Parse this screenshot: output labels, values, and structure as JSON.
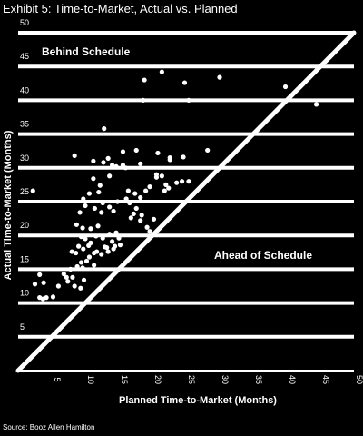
{
  "title": "Exhibit 5: Time-to-Market, Actual vs. Planned",
  "source": "Source: Booz Allen Hamilton",
  "chart_data": {
    "type": "scatter",
    "xlabel": "Planned Time-to-Market (Months)",
    "ylabel": "Actual Time-to-Market (Months)",
    "xlim": [
      0,
      50
    ],
    "ylim": [
      0,
      50
    ],
    "x_ticks": [
      "5",
      "10",
      "15",
      "20",
      "25",
      "30",
      "35",
      "40",
      "45",
      "50"
    ],
    "x_tick_values": [
      5,
      10,
      15,
      20,
      25,
      30,
      35,
      40,
      45,
      50
    ],
    "y_ticks": [
      "5",
      "10",
      "15",
      "20",
      "25",
      "30",
      "35",
      "40",
      "45",
      "50"
    ],
    "y_tick_values": [
      5,
      10,
      15,
      20,
      25,
      30,
      35,
      40,
      45,
      50
    ],
    "grid": "horizontal",
    "reference_line": "y = x",
    "annotations": [
      "Behind Schedule",
      "Ahead of Schedule"
    ],
    "colors": {
      "background": "#000000",
      "foreground": "#ffffff"
    },
    "points": [
      [
        3.2,
        10.8
      ],
      [
        3.7,
        10.6
      ],
      [
        4.2,
        10.8
      ],
      [
        5.2,
        10.9
      ],
      [
        2.5,
        12.8
      ],
      [
        3.8,
        13.0
      ],
      [
        3.2,
        14.2
      ],
      [
        6.0,
        12.5
      ],
      [
        6.8,
        14.3
      ],
      [
        7.2,
        13.8
      ],
      [
        7.4,
        13.2
      ],
      [
        8.1,
        13.8
      ],
      [
        8.4,
        12.5
      ],
      [
        9.3,
        12.2
      ],
      [
        9.8,
        13.4
      ],
      [
        7.8,
        15.0
      ],
      [
        8.8,
        15.4
      ],
      [
        9.4,
        16.0
      ],
      [
        9.6,
        15.2
      ],
      [
        10.2,
        16.2
      ],
      [
        10.6,
        16.8
      ],
      [
        11.3,
        15.6
      ],
      [
        8.0,
        17.6
      ],
      [
        8.6,
        17.4
      ],
      [
        9.0,
        18.4
      ],
      [
        9.7,
        18.0
      ],
      [
        10.5,
        18.5
      ],
      [
        11.3,
        17.4
      ],
      [
        11.7,
        17.6
      ],
      [
        12.4,
        17.2
      ],
      [
        9.4,
        19.8
      ],
      [
        10.0,
        19.5
      ],
      [
        10.8,
        18.9
      ],
      [
        11.6,
        19.9
      ],
      [
        12.6,
        19.6
      ],
      [
        12.9,
        18.3
      ],
      [
        13.6,
        20.2
      ],
      [
        14.0,
        19.1
      ],
      [
        14.6,
        20.4
      ],
      [
        15.0,
        19.6
      ],
      [
        13.2,
        18.2
      ],
      [
        8.7,
        21.6
      ],
      [
        9.6,
        21.1
      ],
      [
        10.8,
        21.0
      ],
      [
        11.9,
        21.4
      ],
      [
        13.4,
        17.6
      ],
      [
        14.4,
        18.4
      ],
      [
        15.2,
        18.6
      ],
      [
        14.2,
        18.0
      ],
      [
        9.2,
        23.4
      ],
      [
        10.0,
        24.4
      ],
      [
        11.4,
        24.0
      ],
      [
        12.4,
        23.4
      ],
      [
        13.6,
        24.2
      ],
      [
        14.2,
        23.6
      ],
      [
        12.6,
        24.8
      ],
      [
        14.8,
        25.0
      ],
      [
        16.6,
        24.8
      ],
      [
        17.6,
        24.0
      ],
      [
        17.2,
        23.2
      ],
      [
        16.8,
        22.6
      ],
      [
        18.2,
        22.2
      ],
      [
        18.4,
        23.0
      ],
      [
        19.2,
        21.2
      ],
      [
        19.6,
        20.6
      ],
      [
        20.2,
        22.4
      ],
      [
        9.7,
        25.4
      ],
      [
        10.6,
        26.2
      ],
      [
        12.2,
        27.4
      ],
      [
        12.0,
        26.4
      ],
      [
        11.2,
        28.4
      ],
      [
        13.6,
        28.8
      ],
      [
        14.0,
        30.4
      ],
      [
        14.6,
        30.2
      ],
      [
        12.7,
        30.8
      ],
      [
        11.2,
        31.0
      ],
      [
        13.4,
        31.4
      ],
      [
        15.6,
        30.4
      ],
      [
        16.4,
        26.6
      ],
      [
        16.1,
        25.4
      ],
      [
        18.2,
        25.6
      ],
      [
        17.4,
        26.2
      ],
      [
        19.0,
        26.6
      ],
      [
        19.6,
        27.2
      ],
      [
        21.8,
        26.6
      ],
      [
        22.4,
        27.0
      ],
      [
        22.0,
        27.5
      ],
      [
        23.6,
        27.8
      ],
      [
        24.4,
        28.0
      ],
      [
        25.4,
        28.0
      ],
      [
        16.0,
        30.0
      ],
      [
        18.2,
        30.6
      ],
      [
        20.6,
        29.0
      ],
      [
        20.6,
        28.6
      ],
      [
        21.4,
        28.8
      ],
      [
        22.6,
        31.2
      ],
      [
        15.6,
        32.4
      ],
      [
        17.6,
        32.6
      ],
      [
        20.8,
        32.2
      ],
      [
        8.4,
        31.8
      ],
      [
        2.2,
        26.6
      ],
      [
        22.6,
        31.5
      ],
      [
        24.6,
        31.6
      ],
      [
        28.2,
        32.6
      ],
      [
        18.8,
        43.0
      ],
      [
        21.4,
        44.2
      ],
      [
        18.6,
        40.0
      ],
      [
        24.8,
        42.6
      ],
      [
        25.4,
        40.0
      ],
      [
        30.0,
        43.4
      ],
      [
        39.8,
        42.0
      ],
      [
        44.4,
        39.4
      ],
      [
        12.8,
        35.8
      ]
    ]
  }
}
